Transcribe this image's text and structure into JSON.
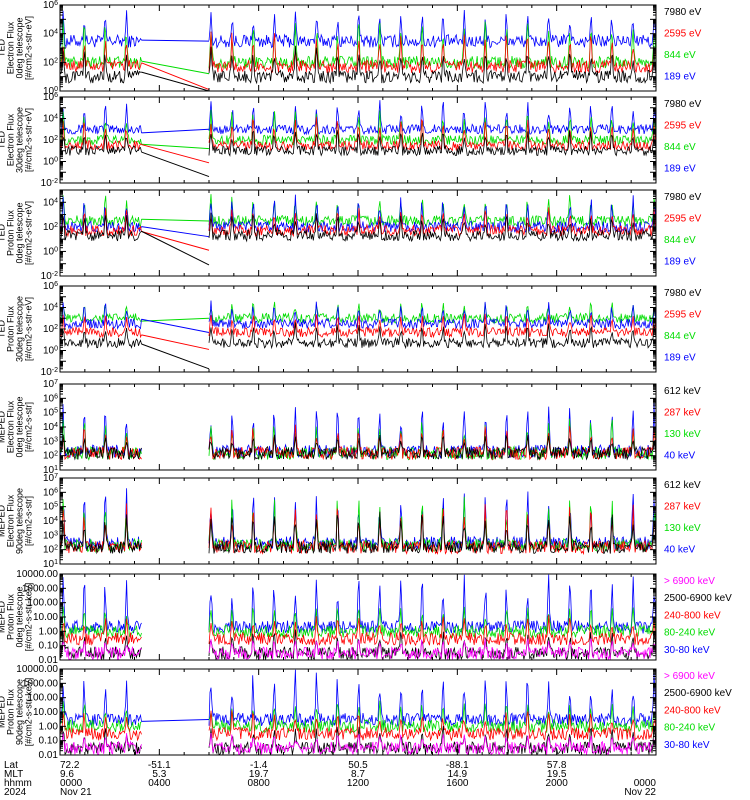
{
  "colors": {
    "blue": "#0000ff",
    "red": "#ff0000",
    "green": "#00dd00",
    "black": "#000000",
    "magenta": "#ff00ff"
  },
  "chart_data": [
    {
      "type": "line",
      "scale": "log",
      "ylim": [
        1,
        1000000
      ],
      "ytick_labels": [
        "10^0",
        "10^2",
        "10^4",
        "10^6"
      ],
      "ylabel": [
        "TED",
        "Electron Flux",
        "0deg telescope",
        "[#/cm2-s-str-eV]"
      ],
      "legend": [
        {
          "label": "7980 eV",
          "color": "#000000"
        },
        {
          "label": "2595 eV",
          "color": "#ff0000"
        },
        {
          "label": "844 eV",
          "color": "#00dd00"
        },
        {
          "label": "189 eV",
          "color": "#0000ff"
        }
      ],
      "series": [
        {
          "legend_index": 3,
          "base": 3000,
          "peak": 300000,
          "drop": 1
        },
        {
          "legend_index": 2,
          "base": 100,
          "peak": 100000,
          "drop": 1
        },
        {
          "legend_index": 1,
          "base": 50,
          "peak": 10000,
          "drop": 1
        },
        {
          "legend_index": 0,
          "base": 10,
          "peak": 1000,
          "drop": 1
        }
      ]
    },
    {
      "type": "line",
      "scale": "log",
      "ylim": [
        0.01,
        1000000
      ],
      "ytick_labels": [
        "10^-2",
        "10^0",
        "10^2",
        "10^4",
        "10^6"
      ],
      "ylabel": [
        "TED",
        "Electron Flux",
        "30deg telescope",
        "[#/cm2-s-str-eV]"
      ],
      "legend": [
        {
          "label": "7980 eV",
          "color": "#000000"
        },
        {
          "label": "2595 eV",
          "color": "#ff0000"
        },
        {
          "label": "844 eV",
          "color": "#00dd00"
        },
        {
          "label": "189 eV",
          "color": "#0000ff"
        }
      ],
      "series": [
        {
          "legend_index": 3,
          "base": 1000,
          "peak": 300000,
          "drop": 1
        },
        {
          "legend_index": 2,
          "base": 100,
          "peak": 50000,
          "drop": 1
        },
        {
          "legend_index": 1,
          "base": 30,
          "peak": 10000,
          "drop": 1
        },
        {
          "legend_index": 0,
          "base": 10,
          "peak": 1000,
          "drop": 1
        }
      ]
    },
    {
      "type": "line",
      "scale": "log",
      "ylim": [
        0.01,
        100000
      ],
      "ytick_labels": [
        "10^-2",
        "10^0",
        "10^2",
        "10^4"
      ],
      "ylabel": [
        "TED",
        "Proton Flux",
        "0deg telescope",
        "[#/cm2-s-str-eV]"
      ],
      "legend": [
        {
          "label": "7980 eV",
          "color": "#000000"
        },
        {
          "label": "2595 eV",
          "color": "#ff0000"
        },
        {
          "label": "844 eV",
          "color": "#00dd00"
        },
        {
          "label": "189 eV",
          "color": "#0000ff"
        }
      ],
      "series": [
        {
          "legend_index": 2,
          "base": 300,
          "peak": 30000,
          "drop": 1
        },
        {
          "legend_index": 3,
          "base": 100,
          "peak": 30000,
          "drop": 1
        },
        {
          "legend_index": 1,
          "base": 50,
          "peak": 3000,
          "drop": 1
        },
        {
          "legend_index": 0,
          "base": 20,
          "peak": 1000,
          "drop": 1
        }
      ]
    },
    {
      "type": "line",
      "scale": "log",
      "ylim": [
        0.01,
        1000000
      ],
      "ytick_labels": [
        "10^-2",
        "10^0",
        "10^2",
        "10^4",
        "10^6"
      ],
      "ylabel": [
        "TED",
        "Proton Flux",
        "30deg telescope",
        "[#/cm2-s-str-eV]"
      ],
      "legend": [
        {
          "label": "7980 eV",
          "color": "#000000"
        },
        {
          "label": "2595 eV",
          "color": "#ff0000"
        },
        {
          "label": "844 eV",
          "color": "#00dd00"
        },
        {
          "label": "189 eV",
          "color": "#0000ff"
        }
      ],
      "series": [
        {
          "legend_index": 2,
          "base": 1000,
          "peak": 30000,
          "drop": 1
        },
        {
          "legend_index": 3,
          "base": 300,
          "peak": 30000,
          "drop": 1
        },
        {
          "legend_index": 1,
          "base": 50,
          "peak": 3000,
          "drop": 1
        },
        {
          "legend_index": 0,
          "base": 5,
          "peak": 300,
          "drop": 1
        }
      ]
    },
    {
      "type": "line",
      "scale": "log",
      "ylim": [
        10,
        10000000
      ],
      "ytick_labels": [
        "10^1",
        "10^2",
        "10^3",
        "10^4",
        "10^5",
        "10^6",
        "10^7"
      ],
      "ylabel": [
        "MEPED",
        "Electron Flux",
        "0deg telescope",
        "[#/cm2-s-str]"
      ],
      "legend": [
        {
          "label": "612 keV",
          "color": "#000000"
        },
        {
          "label": "287 keV",
          "color": "#ff0000"
        },
        {
          "label": "130 keV",
          "color": "#00dd00"
        },
        {
          "label": "40 keV",
          "color": "#0000ff"
        }
      ],
      "series": [
        {
          "legend_index": 3,
          "base": 200,
          "peak": 300000,
          "drop": 0
        },
        {
          "legend_index": 2,
          "base": 150,
          "peak": 30000,
          "drop": 0
        },
        {
          "legend_index": 1,
          "base": 150,
          "peak": 10000,
          "drop": 0
        },
        {
          "legend_index": 0,
          "base": 150,
          "peak": 3000,
          "drop": 0
        }
      ]
    },
    {
      "type": "line",
      "scale": "log",
      "ylim": [
        10,
        10000000
      ],
      "ytick_labels": [
        "10^1",
        "10^2",
        "10^3",
        "10^4",
        "10^5",
        "10^6",
        "10^7"
      ],
      "ylabel": [
        "MEPED",
        "Electron Flux",
        "90deg telescope",
        "[#/cm2-s-str]"
      ],
      "legend": [
        {
          "label": "612 keV",
          "color": "#000000"
        },
        {
          "label": "287 keV",
          "color": "#ff0000"
        },
        {
          "label": "130 keV",
          "color": "#00dd00"
        },
        {
          "label": "40 keV",
          "color": "#0000ff"
        }
      ],
      "series": [
        {
          "legend_index": 3,
          "base": 300,
          "peak": 1000000,
          "drop": 0
        },
        {
          "legend_index": 2,
          "base": 200,
          "peak": 300000,
          "drop": 0
        },
        {
          "legend_index": 1,
          "base": 150,
          "peak": 100000,
          "drop": 0
        },
        {
          "legend_index": 0,
          "base": 150,
          "peak": 30000,
          "drop": 0
        }
      ]
    },
    {
      "type": "line",
      "scale": "log",
      "ylim": [
        0.01,
        10000
      ],
      "ytick_labels": [
        "0.01",
        "0.10",
        "1.00",
        "10.00",
        "100.00",
        "1000.00",
        "10000.00"
      ],
      "ylabel": [
        "MEPED",
        "Proton Flux",
        "0deg telescope",
        "[#/cm2-s-str-keV]"
      ],
      "legend": [
        {
          "label": "> 6900 keV",
          "color": "#ff00ff"
        },
        {
          "label": "2500-6900 keV",
          "color": "#000000"
        },
        {
          "label": "240-800 keV",
          "color": "#ff0000"
        },
        {
          "label": "80-240 keV",
          "color": "#00dd00"
        },
        {
          "label": "30-80 keV",
          "color": "#0000ff"
        }
      ],
      "series": [
        {
          "legend_index": 4,
          "base": 2,
          "peak": 5000,
          "drop": 0
        },
        {
          "legend_index": 3,
          "base": 1,
          "peak": 50,
          "drop": 0
        },
        {
          "legend_index": 2,
          "base": 0.3,
          "peak": 10,
          "drop": 0
        },
        {
          "legend_index": 1,
          "base": 0.03,
          "peak": 1,
          "drop": 0
        },
        {
          "legend_index": 0,
          "base": 0.03,
          "peak": 0.3,
          "drop": 0
        }
      ]
    },
    {
      "type": "line",
      "scale": "log",
      "ylim": [
        0.01,
        10000
      ],
      "ytick_labels": [
        "0.01",
        "0.10",
        "1.00",
        "10.00",
        "100.00",
        "1000.00",
        "10000.00"
      ],
      "ylabel": [
        "MEPED",
        "Proton Flux",
        "90deg telescope",
        "[#/cm2-s-str-keV]"
      ],
      "legend": [
        {
          "label": "> 6900 keV",
          "color": "#ff00ff"
        },
        {
          "label": "2500-6900 keV",
          "color": "#000000"
        },
        {
          "label": "240-800 keV",
          "color": "#ff0000"
        },
        {
          "label": "80-240 keV",
          "color": "#00dd00"
        },
        {
          "label": "30-80 keV",
          "color": "#0000ff"
        }
      ],
      "series": [
        {
          "legend_index": 4,
          "base": 3,
          "peak": 5000,
          "drop": 1
        },
        {
          "legend_index": 3,
          "base": 1,
          "peak": 50,
          "drop": 0
        },
        {
          "legend_index": 2,
          "base": 0.3,
          "peak": 10,
          "drop": 0
        },
        {
          "legend_index": 1,
          "base": 0.03,
          "peak": 1,
          "drop": 0
        },
        {
          "legend_index": 0,
          "base": 0.03,
          "peak": 0.3,
          "drop": 0
        }
      ]
    }
  ],
  "time_axis": {
    "row_labels": [
      "Lat",
      "MLT",
      "hhmm",
      "2024"
    ],
    "columns": [
      {
        "lat": "72.2",
        "mlt": "9.6",
        "hhmm": "0000",
        "date": "Nov 21"
      },
      {
        "lat": "-51.1",
        "mlt": "5.3",
        "hhmm": "0400",
        "date": ""
      },
      {
        "lat": "-1.4",
        "mlt": "19.7",
        "hhmm": "0800",
        "date": ""
      },
      {
        "lat": "50.5",
        "mlt": "8.7",
        "hhmm": "1200",
        "date": ""
      },
      {
        "lat": "-88.1",
        "mlt": "14.9",
        "hhmm": "1600",
        "date": ""
      },
      {
        "lat": "57.8",
        "mlt": "19.5",
        "hhmm": "2000",
        "date": ""
      },
      {
        "lat": "",
        "mlt": "",
        "hhmm": "0000",
        "date": "Nov 22"
      }
    ],
    "hours_total": 24,
    "data_gap_hours": [
      3.3,
      6.0
    ],
    "pass_period_hours": 0.85
  }
}
